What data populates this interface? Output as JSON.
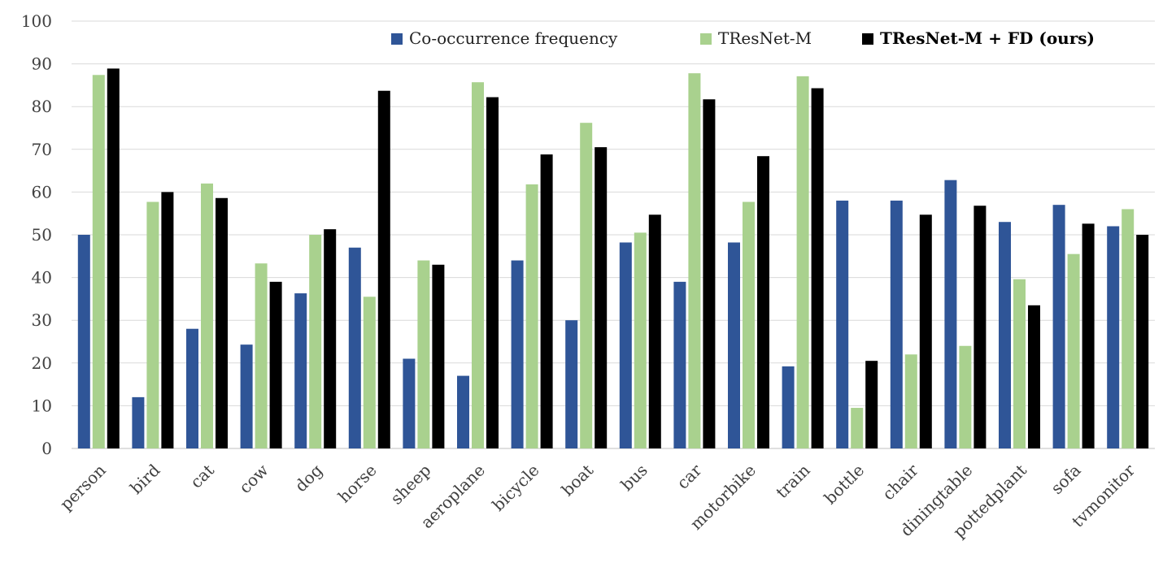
{
  "chart_data": {
    "type": "bar",
    "title": "",
    "xlabel": "",
    "ylabel": "",
    "ylim": [
      0,
      100
    ],
    "yticks": [
      0,
      10,
      20,
      30,
      40,
      50,
      60,
      70,
      80,
      90,
      100
    ],
    "grid": true,
    "legend_position": "top-right",
    "categories": [
      "person",
      "bird",
      "cat",
      "cow",
      "dog",
      "horse",
      "sheep",
      "aeroplane",
      "bicycle",
      "boat",
      "bus",
      "car",
      "motorbike",
      "train",
      "bottle",
      "chair",
      "diningtable",
      "pottedplant",
      "sofa",
      "tvmonitor"
    ],
    "series": [
      {
        "name": "Co-occurrence frequency",
        "color": "#2f5597",
        "bold": false,
        "values": [
          50,
          12,
          28,
          24.3,
          36.3,
          47,
          21,
          17,
          44,
          30,
          48.2,
          39,
          48.2,
          19.2,
          58,
          58,
          62.8,
          53,
          57,
          52
        ]
      },
      {
        "name": "TResNet-M",
        "color": "#a9d18e",
        "bold": false,
        "values": [
          87.4,
          57.7,
          62,
          43.3,
          50,
          35.5,
          44,
          85.7,
          61.8,
          76.2,
          50.5,
          87.8,
          57.7,
          87.1,
          9.5,
          22,
          24,
          39.6,
          45.5,
          56
        ]
      },
      {
        "name": "TResNet-M + FD (ours)",
        "color": "#000000",
        "bold": true,
        "values": [
          88.9,
          60,
          58.6,
          39,
          51.3,
          83.7,
          43,
          82.2,
          68.8,
          70.5,
          54.7,
          81.7,
          68.4,
          84.3,
          20.5,
          54.7,
          56.8,
          33.5,
          52.6,
          50
        ]
      }
    ]
  }
}
